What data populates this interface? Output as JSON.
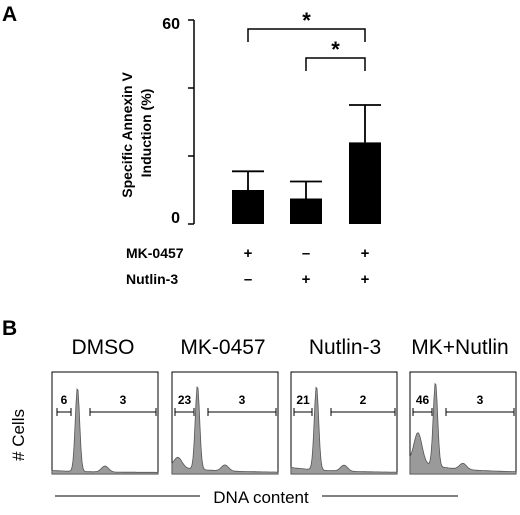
{
  "chart_data": [
    {
      "panel": "A",
      "type": "bar",
      "ylabel_lines": [
        "Specific Annexin V",
        "Induction (%)"
      ],
      "ylim": [
        0,
        60
      ],
      "yticks": [
        "0",
        "60"
      ],
      "categories": [
        "MK-0457 + / Nutlin-3 −",
        "MK-0457 − / Nutlin-3 +",
        "MK-0457 + / Nutlin-3 +"
      ],
      "values": [
        10,
        7.5,
        24
      ],
      "errors": [
        5.5,
        5,
        11
      ],
      "bar_color": "#000000",
      "treatments": [
        {
          "label": "MK-0457",
          "signs": [
            "+",
            "–",
            "+"
          ]
        },
        {
          "label": "Nutlin-3",
          "signs": [
            "–",
            "+",
            "+"
          ]
        }
      ],
      "significance": [
        {
          "from": 0,
          "to": 2,
          "label": "*"
        },
        {
          "from": 1,
          "to": 2,
          "label": "*"
        }
      ]
    },
    {
      "panel": "B",
      "type": "histogram",
      "ylabel": "# Cells",
      "xlabel": "DNA content",
      "fill_color": "#9a9a9a",
      "histograms": [
        {
          "title": "DMSO",
          "gate_left": "6",
          "gate_right": "3"
        },
        {
          "title": "MK-0457",
          "gate_left": "23",
          "gate_right": "3"
        },
        {
          "title": "Nutlin-3",
          "gate_left": "21",
          "gate_right": "2"
        },
        {
          "title": "MK+Nutlin",
          "gate_left": "46",
          "gate_right": "3"
        }
      ]
    }
  ]
}
